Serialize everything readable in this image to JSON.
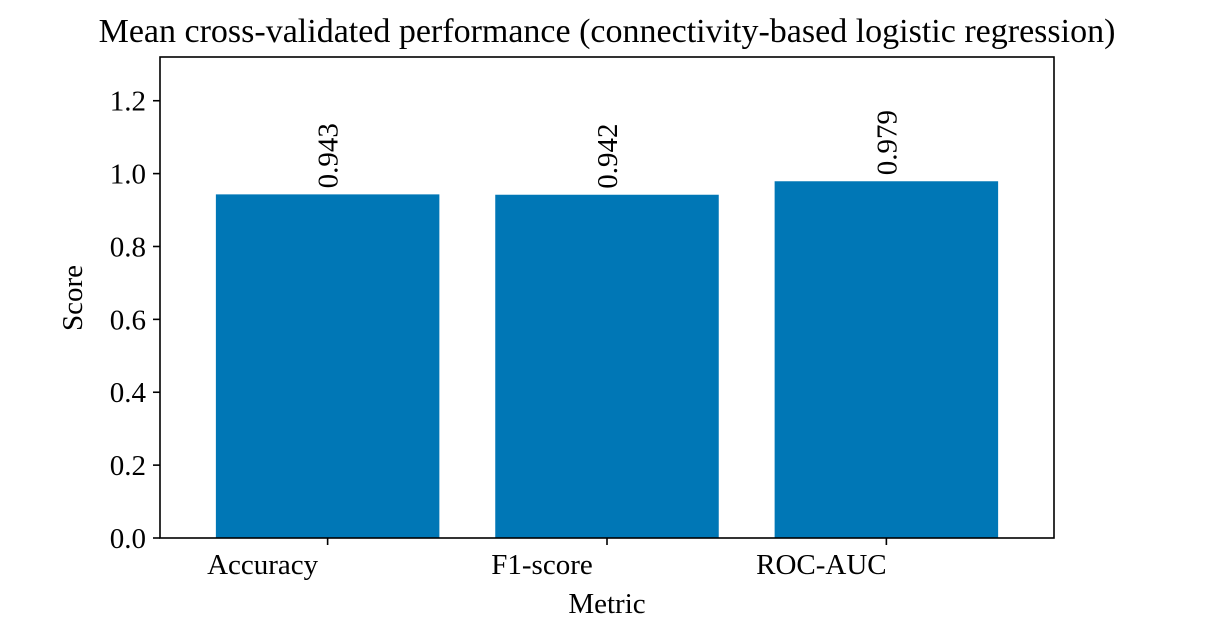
{
  "chart_data": {
    "type": "bar",
    "title": "Mean cross-validated performance (connectivity-based logistic regression)",
    "xlabel": "Metric",
    "ylabel": "Score",
    "categories": [
      "Accuracy",
      "F1-score",
      "ROC-AUC"
    ],
    "values": [
      0.943,
      0.942,
      0.979
    ],
    "data_labels": [
      "0.943",
      "0.942",
      "0.979"
    ],
    "ylim": [
      0,
      1.32
    ],
    "yticks": [
      0.0,
      0.2,
      0.4,
      0.6,
      0.8,
      1.0,
      1.2
    ],
    "ytick_labels": [
      "0.0",
      "0.2",
      "0.4",
      "0.6",
      "0.8",
      "1.0",
      "1.2"
    ],
    "bar_color": "#0077b6",
    "grid": false,
    "legend": "none"
  }
}
